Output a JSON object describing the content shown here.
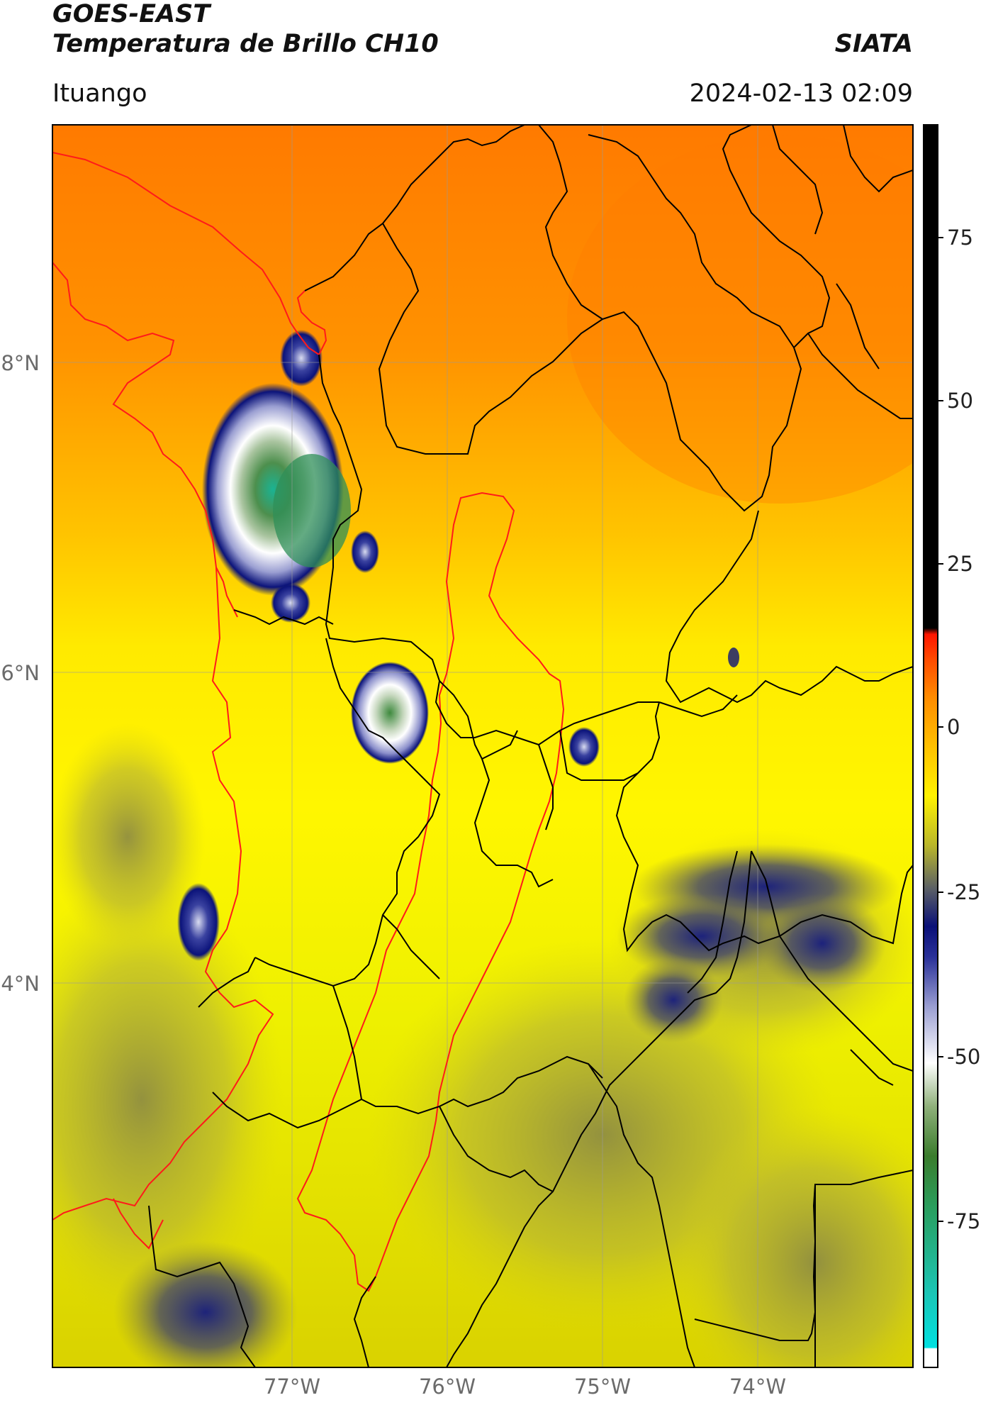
{
  "header": {
    "satellite": "GOES-EAST",
    "product": "Temperatura de Brillo CH10",
    "agency": "SIATA",
    "location": "Ituango",
    "datetime": "2024-02-13 02:09"
  },
  "map": {
    "lat_ticks": [
      "8°N",
      "6°N",
      "4°N"
    ],
    "lon_ticks": [
      "77°W",
      "76°W",
      "75°W",
      "74°W"
    ],
    "border_color_country": "#000000",
    "border_color_highlight": "#ff0000"
  },
  "colorbar": {
    "ticks": [
      "75",
      "50",
      "25",
      "0",
      "-25",
      "-50",
      "-75"
    ],
    "colors": {
      "black": "#000000",
      "red": "#ff1500",
      "orange": "#ff8a00",
      "yellow": "#fff200",
      "olive": "#b9b62a",
      "darkblue": "#0a1078",
      "lavender": "#b7b8dc",
      "white": "#ffffff",
      "green": "#2e7d32",
      "cyan": "#1fd9c8"
    }
  }
}
